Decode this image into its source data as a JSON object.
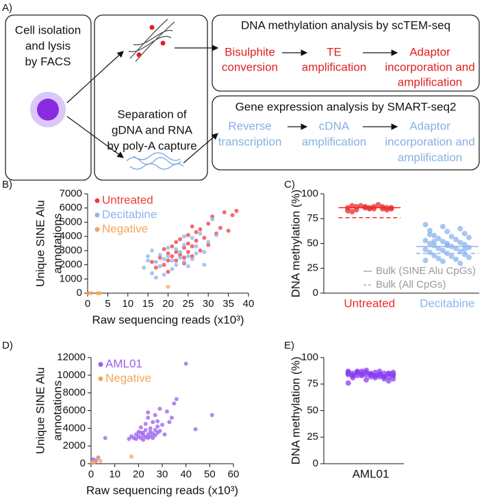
{
  "diagram": {
    "label": "A)",
    "cell_box": [
      "Cell isolation",
      "and lysis",
      "by FACS"
    ],
    "separation_box": [
      "Separation of",
      "gDNA and RNA",
      "by poly-A capture"
    ],
    "dna_title": "DNA methylation analysis by scTEM-seq",
    "dna_steps": [
      [
        "Bisulphite",
        "conversion"
      ],
      [
        "TE",
        "amplification"
      ],
      [
        "Adaptor",
        "incorporation and",
        "amplification"
      ]
    ],
    "rna_title": "Gene expression analysis by SMART-seq2",
    "rna_steps": [
      [
        "Reverse",
        "transcription"
      ],
      [
        "cDNA",
        "amplification"
      ],
      [
        "Adaptor",
        "incorporation and",
        "amplification"
      ]
    ]
  },
  "chart_data": [
    {
      "type": "scatter",
      "panel_label": "B)",
      "xlabel": "Raw sequencing reads (x10³)",
      "ylabel": [
        "Unique SINE Alu",
        "annotations"
      ],
      "xlim": [
        0,
        40
      ],
      "ylim": [
        0,
        7000
      ],
      "xticks": [
        0,
        5,
        10,
        15,
        20,
        25,
        30,
        35,
        40
      ],
      "yticks": [
        0,
        1000,
        2000,
        3000,
        4000,
        5000,
        6000,
        7000
      ],
      "legend": "upper left",
      "series": [
        {
          "name": "Untreated",
          "color": "#ef3b3b",
          "x": [
            17,
            18,
            19,
            19,
            20,
            20,
            21,
            21,
            22,
            22,
            22,
            23,
            23,
            24,
            24,
            24,
            25,
            25,
            25,
            26,
            26,
            26,
            27,
            27,
            28,
            28,
            29,
            30,
            30,
            31,
            32,
            33,
            34,
            35,
            36,
            37,
            16,
            20
          ],
          "y": [
            1800,
            2500,
            3100,
            2000,
            2800,
            2300,
            3300,
            2600,
            2900,
            3600,
            2300,
            2700,
            3800,
            3200,
            2500,
            2100,
            4100,
            3500,
            2900,
            4700,
            3300,
            2600,
            3700,
            4300,
            3000,
            4500,
            3900,
            4900,
            3400,
            5400,
            4200,
            4600,
            5700,
            4400,
            5500,
            5800,
            2200,
            1500
          ]
        },
        {
          "name": "Decitabine",
          "color": "#8ab4ee",
          "x": [
            14,
            15,
            15,
            16,
            16,
            17,
            17,
            18,
            18,
            19,
            19,
            20,
            20,
            21,
            21,
            22,
            22,
            23,
            23,
            24,
            24,
            25,
            25,
            26,
            26,
            27,
            27,
            28,
            29,
            30,
            31,
            32,
            29,
            24
          ],
          "y": [
            1800,
            2600,
            2300,
            1400,
            3000,
            2200,
            1100,
            2700,
            1900,
            1300,
            2400,
            2600,
            3200,
            1700,
            2300,
            2000,
            3100,
            2500,
            2900,
            2200,
            3400,
            1900,
            2600,
            2400,
            3900,
            2800,
            3300,
            4200,
            2900,
            3600,
            5200,
            4100,
            2000,
            4000
          ]
        },
        {
          "name": "Negative",
          "color": "#f5a55a",
          "x": [
            0.3,
            1,
            2.5,
            3,
            20
          ],
          "y": [
            0,
            0,
            0,
            0,
            450
          ]
        }
      ]
    },
    {
      "type": "strip",
      "panel_label": "C)",
      "ylabel": "DNA methylation (%)",
      "ylim": [
        0,
        100
      ],
      "yticks": [
        0,
        25,
        50,
        75,
        100
      ],
      "legend": [
        "Bulk (SINE Alu CpGs)",
        "Bulk (All CpGs)"
      ],
      "groups": [
        {
          "name": "Untreated",
          "color": "#ef2b2b",
          "bulk_sine_alu": 86,
          "bulk_all": 76,
          "values": [
            86,
            87,
            85,
            88,
            86,
            84,
            87,
            85,
            86,
            88,
            89,
            83,
            86,
            87,
            82,
            85,
            86,
            84,
            87,
            85
          ]
        },
        {
          "name": "Decitabine",
          "color": "#8ab4ee",
          "bulk_sine_alu": 47,
          "bulk_all": 40,
          "values": [
            69,
            67,
            65,
            63,
            62,
            60,
            58,
            57,
            56,
            55,
            54,
            53,
            52,
            51,
            50,
            50,
            49,
            48,
            47,
            46,
            45,
            45,
            44,
            43,
            42,
            41,
            40,
            39,
            38,
            37,
            36,
            35,
            34,
            33,
            32,
            30,
            59,
            48,
            44,
            52
          ]
        }
      ]
    },
    {
      "type": "scatter",
      "panel_label": "D)",
      "xlabel": "Raw sequencing reads (x10³)",
      "ylabel": [
        "Unique SINE Alu",
        "annotations"
      ],
      "xlim": [
        0,
        60
      ],
      "ylim": [
        0,
        12000
      ],
      "xticks": [
        0,
        10,
        20,
        30,
        40,
        50,
        60
      ],
      "yticks": [
        0,
        2000,
        4000,
        6000,
        8000,
        10000,
        12000
      ],
      "legend": "upper left",
      "series": [
        {
          "name": "AML01",
          "color": "#9a5cf0",
          "x": [
            6,
            16,
            17,
            18,
            19,
            19,
            20,
            20,
            21,
            21,
            22,
            22,
            22,
            23,
            23,
            23,
            24,
            24,
            24,
            25,
            25,
            25,
            26,
            26,
            26,
            27,
            27,
            27,
            28,
            28,
            29,
            29,
            30,
            31,
            32,
            34,
            35,
            36,
            33,
            40,
            44,
            51,
            24,
            21,
            28,
            2,
            1,
            3
          ],
          "y": [
            2900,
            2800,
            3100,
            2900,
            3300,
            2800,
            3600,
            3100,
            2900,
            4100,
            3500,
            3200,
            2700,
            3800,
            3000,
            4500,
            3300,
            2900,
            5200,
            3600,
            4000,
            3100,
            3400,
            4700,
            2900,
            3800,
            3200,
            5500,
            4200,
            3500,
            3700,
            6200,
            4400,
            3300,
            5900,
            5200,
            6800,
            7300,
            4700,
            11300,
            3900,
            5500,
            5800,
            3500,
            4800,
            300,
            500,
            700
          ]
        },
        {
          "name": "Negative",
          "color": "#f5a55a",
          "x": [
            0.5,
            1.5,
            3,
            4,
            17
          ],
          "y": [
            100,
            200,
            600,
            300,
            800
          ]
        }
      ]
    },
    {
      "type": "strip",
      "panel_label": "E)",
      "ylabel": "DNA methylation (%)",
      "ylim": [
        0,
        100
      ],
      "yticks": [
        0,
        25,
        50,
        75,
        100
      ],
      "groups": [
        {
          "name": "AML01",
          "color": "#8a3ef0",
          "values": [
            76,
            79,
            80,
            81,
            82,
            82,
            83,
            83,
            83,
            84,
            84,
            84,
            84,
            85,
            85,
            85,
            85,
            86,
            86,
            86,
            87,
            87,
            87,
            88,
            82,
            83,
            84,
            85,
            86,
            81,
            80,
            83,
            84,
            85,
            86,
            82,
            83,
            84,
            78,
            87,
            83,
            84,
            85,
            82,
            86
          ]
        }
      ]
    }
  ]
}
